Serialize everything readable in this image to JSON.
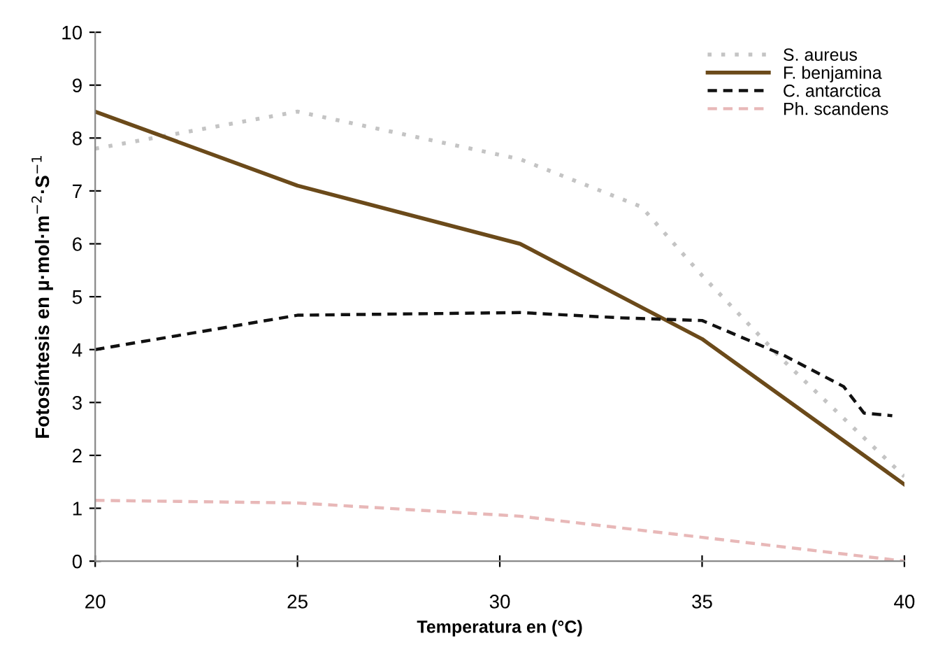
{
  "chart_data": {
    "type": "line",
    "xlabel": "Temperatura en (°C)",
    "ylabel": "Fotosíntesis en µ·mol·m$^{−2}$·S$^{−1}$",
    "xlim": [
      20,
      40
    ],
    "xticks": [
      20,
      25,
      30,
      35,
      40
    ],
    "ylim": [
      0,
      10
    ],
    "yticks": [
      0,
      1,
      2,
      3,
      4,
      5,
      6,
      7,
      8,
      9,
      10
    ],
    "grid": false,
    "legend": "top right",
    "series": [
      {
        "name": "S. aureus",
        "color": "#c4c4c4",
        "line_style": "dotted",
        "x": [
          20,
          25,
          30.5,
          33.5,
          35,
          37,
          40
        ],
        "values": [
          7.8,
          8.5,
          7.6,
          6.7,
          5.4,
          3.8,
          1.6
        ]
      },
      {
        "name": "F. benjamina",
        "color": "#6b4a1a",
        "line_style": "solid",
        "x": [
          20,
          25,
          30.5,
          35,
          40
        ],
        "values": [
          8.5,
          7.1,
          6.0,
          4.2,
          1.45
        ]
      },
      {
        "name": "C. antarctica",
        "color": "#111111",
        "line_style": "dashed",
        "x": [
          20,
          25,
          30.5,
          33,
          35,
          37,
          38.5,
          39,
          39.7
        ],
        "values": [
          4.0,
          4.65,
          4.7,
          4.6,
          4.55,
          3.9,
          3.3,
          2.8,
          2.75
        ]
      },
      {
        "name": "Ph. scandens",
        "color": "#e8b8b8",
        "line_style": "dashed",
        "x": [
          20,
          25,
          30.5,
          35,
          40
        ],
        "values": [
          1.15,
          1.1,
          0.85,
          0.45,
          0.0
        ]
      }
    ]
  }
}
